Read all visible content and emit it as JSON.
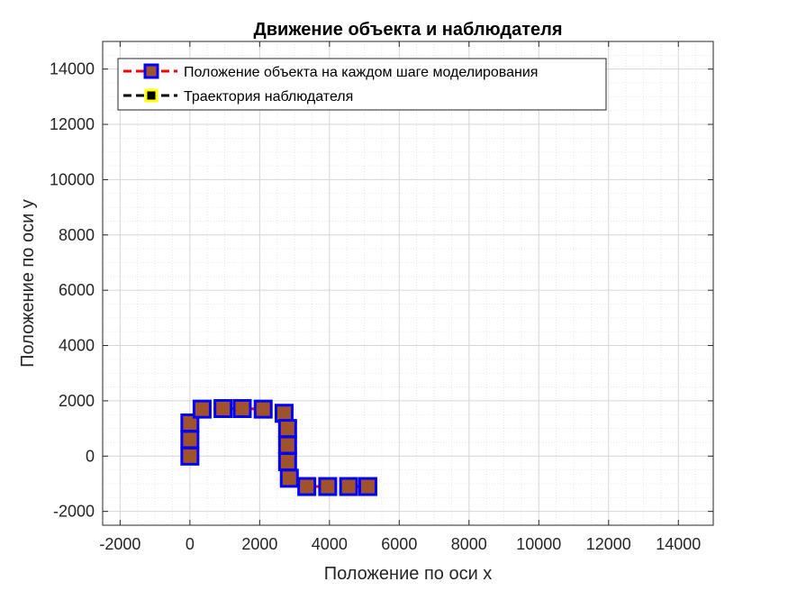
{
  "chart_data": {
    "type": "line",
    "title": "Движение объекта и наблюдателя",
    "xlabel": "Положение по оси x",
    "ylabel": "Положение по оси y",
    "xlim": [
      -2500,
      15000
    ],
    "ylim": [
      -2500,
      15000
    ],
    "xticks": [
      -2000,
      0,
      2000,
      4000,
      6000,
      8000,
      10000,
      12000,
      14000
    ],
    "yticks": [
      -2000,
      0,
      2000,
      4000,
      6000,
      8000,
      10000,
      12000,
      14000
    ],
    "grid": true,
    "minor_grid": true,
    "legend_position": "top-left",
    "series": [
      {
        "name": "Положение объекта на каждом шаге моделирования",
        "line_color": "#ff0000",
        "line_style": "dashed",
        "marker": "square",
        "marker_edge_color": "#0000ff",
        "marker_face_color": "#a0522d",
        "points": [
          [
            0,
            0
          ],
          [
            0,
            600
          ],
          [
            0,
            1200
          ],
          [
            350,
            1700
          ],
          [
            950,
            1720
          ],
          [
            1500,
            1720
          ],
          [
            2100,
            1700
          ],
          [
            2700,
            1550
          ],
          [
            2800,
            1000
          ],
          [
            2800,
            400
          ],
          [
            2800,
            -200
          ],
          [
            2850,
            -800
          ],
          [
            3350,
            -1100
          ],
          [
            3950,
            -1100
          ],
          [
            4550,
            -1100
          ],
          [
            5100,
            -1100
          ]
        ]
      },
      {
        "name": "Траектория наблюдателя",
        "line_color": "#000000",
        "line_style": "dashed",
        "marker": "square",
        "marker_edge_color": "#ffff00",
        "marker_face_color": "#000000",
        "points": []
      }
    ]
  }
}
